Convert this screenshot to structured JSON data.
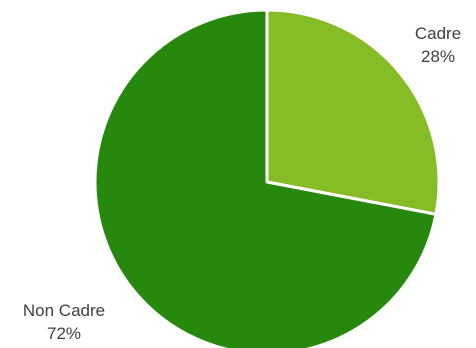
{
  "chart_data": {
    "type": "pie",
    "title": "",
    "slices": [
      {
        "name": "Cadre",
        "value": 28,
        "value_label": "28%",
        "color": "#86bc25"
      },
      {
        "name": "Non Cadre",
        "value": 72,
        "value_label": "72%",
        "color": "#26890d"
      }
    ],
    "start_angle": "12 o'clock",
    "direction": "clockwise",
    "legend": "none",
    "slice_border_color": "#ffffff"
  }
}
